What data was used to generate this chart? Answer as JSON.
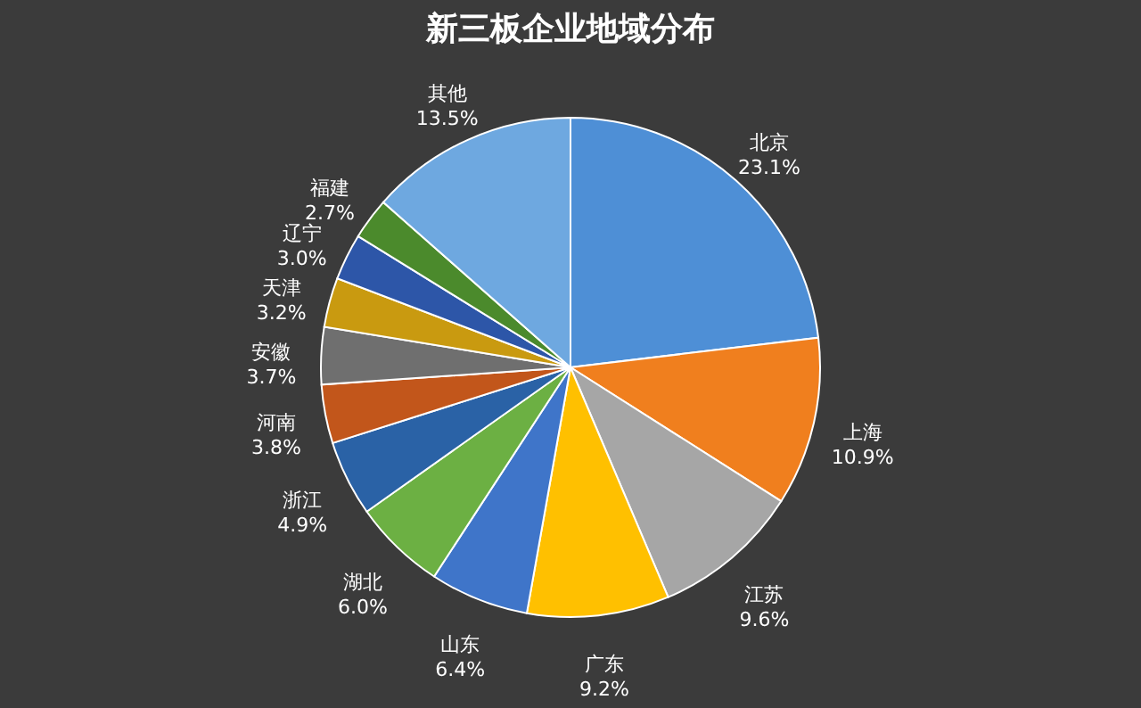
{
  "chart_data": {
    "type": "pie",
    "title": "新三板企业地域分布",
    "categories": [
      "北京",
      "上海",
      "江苏",
      "广东",
      "山东",
      "湖北",
      "浙江",
      "河南",
      "安徽",
      "天津",
      "辽宁",
      "福建",
      "其他"
    ],
    "values": [
      23.1,
      10.9,
      9.6,
      9.2,
      6.4,
      6.0,
      4.9,
      3.8,
      3.7,
      3.2,
      3.0,
      2.7,
      13.5
    ],
    "colors": [
      "#4e8fd6",
      "#f07f1e",
      "#a6a6a6",
      "#ffc000",
      "#3f75c9",
      "#6cb043",
      "#2a62a6",
      "#c2561b",
      "#6f6f6f",
      "#c99a10",
      "#2d56a8",
      "#4b8a2c",
      "#6ea8e0"
    ],
    "value_labels": [
      "23.1%",
      "10.9%",
      "9.6%",
      "9.2%",
      "6.4%",
      "6.0%",
      "4.9%",
      "3.8%",
      "3.7%",
      "3.2%",
      "3.0%",
      "2.7%",
      "13.5%"
    ],
    "legend": false
  }
}
